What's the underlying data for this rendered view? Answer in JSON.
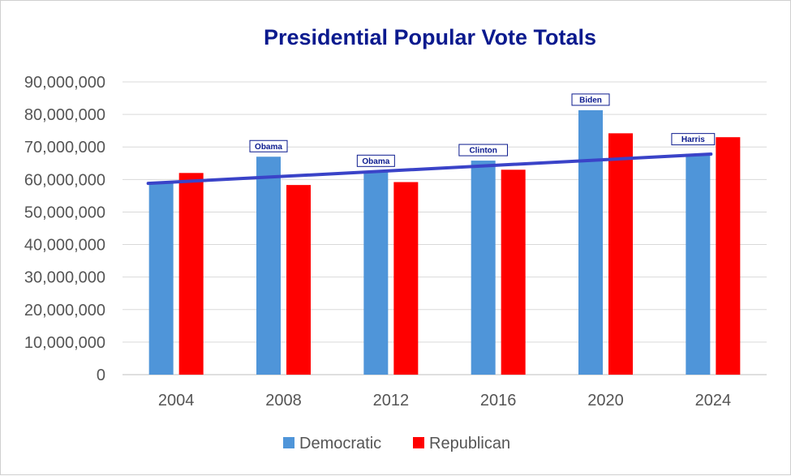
{
  "chart_data": {
    "type": "bar",
    "title": "Presidential Popular Vote Totals",
    "categories": [
      "2004",
      "2008",
      "2012",
      "2016",
      "2020",
      "2024"
    ],
    "series": [
      {
        "name": "Democratic",
        "color": "#4f95d9",
        "values": [
          59000000,
          67000000,
          62500000,
          65800000,
          81300000,
          67900000
        ]
      },
      {
        "name": "Republican",
        "color": "#ff0000",
        "values": [
          62000000,
          58300000,
          59200000,
          63000000,
          74200000,
          73000000
        ]
      }
    ],
    "callouts": [
      {
        "category": "2008",
        "text": "Obama"
      },
      {
        "category": "2012",
        "text": "Obama"
      },
      {
        "category": "2016",
        "text": "Clinton"
      },
      {
        "category": "2020",
        "text": "Biden"
      },
      {
        "category": "2024",
        "text": "Harris"
      }
    ],
    "trendline": {
      "series": "Democratic",
      "color": "#3a43c8",
      "start": 58800000,
      "end": 67800000
    },
    "ylim": [
      0,
      90000000
    ],
    "yticks": [
      "0",
      "10,000,000",
      "20,000,000",
      "30,000,000",
      "40,000,000",
      "50,000,000",
      "60,000,000",
      "70,000,000",
      "80,000,000",
      "90,000,000"
    ],
    "grid": true,
    "legend_position": "bottom"
  }
}
